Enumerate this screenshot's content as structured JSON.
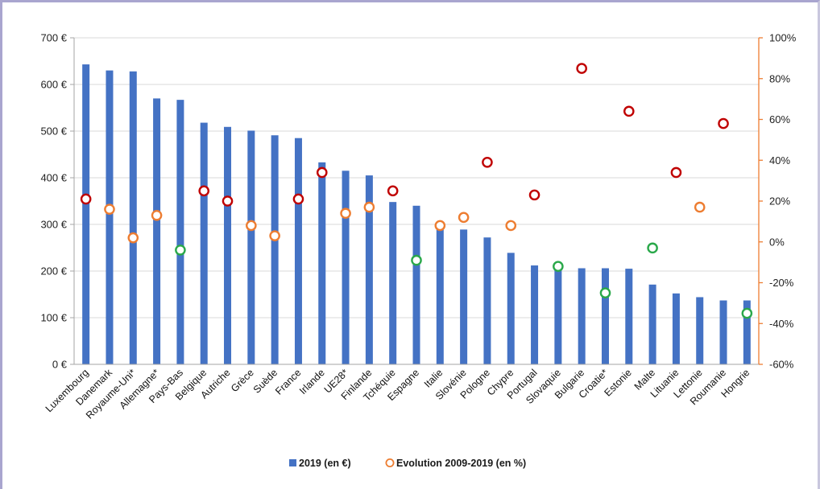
{
  "chart_data": {
    "type": "bar",
    "categories": [
      "Luxembourg",
      "Danemark",
      "Royaume-Uni*",
      "Allemagne*",
      "Pays-Bas",
      "Belgique",
      "Autriche",
      "Grèce",
      "Suède",
      "France",
      "Irlande",
      "UE28*",
      "Finlande",
      "Tchéquie",
      "Espagne",
      "Italie",
      "Slovénie",
      "Pologne",
      "Chypre",
      "Portugal",
      "Slovaquie",
      "Bulgarie",
      "Croatie*",
      "Estonie",
      "Malte",
      "Lituanie",
      "Lettonie",
      "Roumanie",
      "Hongrie"
    ],
    "series": [
      {
        "name": "2019 (en €)",
        "type": "bar",
        "axis": "left",
        "color": "#4472c4",
        "values": [
          643,
          630,
          628,
          570,
          567,
          518,
          509,
          501,
          491,
          485,
          433,
          415,
          405,
          348,
          340,
          300,
          289,
          272,
          239,
          212,
          209,
          206,
          206,
          205,
          171,
          152,
          144,
          137,
          137
        ]
      },
      {
        "name": "Evolution 2009-2019 (en %)",
        "type": "scatter",
        "axis": "right",
        "color": "#ed7d31",
        "values": [
          21,
          16,
          2,
          13,
          -4,
          25,
          20,
          8,
          3,
          21,
          34,
          14,
          17,
          25,
          -9,
          8,
          12,
          39,
          8,
          23,
          -12,
          85,
          -25,
          64,
          -3,
          34,
          17,
          58,
          -35
        ],
        "marker_colors": [
          "#c00000",
          "#ed7d31",
          "#ed7d31",
          "#ed7d31",
          "#2aa84a",
          "#c00000",
          "#c00000",
          "#ed7d31",
          "#ed7d31",
          "#c00000",
          "#c00000",
          "#ed7d31",
          "#ed7d31",
          "#c00000",
          "#2aa84a",
          "#ed7d31",
          "#ed7d31",
          "#c00000",
          "#ed7d31",
          "#c00000",
          "#2aa84a",
          "#c00000",
          "#2aa84a",
          "#c00000",
          "#2aa84a",
          "#c00000",
          "#ed7d31",
          "#c00000",
          "#2aa84a"
        ]
      }
    ],
    "y_left": {
      "min": 0,
      "max": 700,
      "step": 100,
      "ticks": [
        "0 €",
        "100 €",
        "200 €",
        "300 €",
        "400 €",
        "500 €",
        "600 €",
        "700 €"
      ]
    },
    "y_right": {
      "min": -60,
      "max": 100,
      "step": 20,
      "ticks": [
        "-60%",
        "-40%",
        "-20%",
        "0%",
        "20%",
        "40%",
        "60%",
        "80%",
        "100%"
      ],
      "color": "#ed7d31"
    },
    "grid": "horizontal",
    "legend_position": "bottom",
    "legend": [
      {
        "label": "2019 (en €)",
        "marker": "square",
        "color": "#4472c4"
      },
      {
        "label": "Evolution 2009-2019 (en %)",
        "marker": "circle",
        "color": "#ed7d31"
      }
    ]
  }
}
